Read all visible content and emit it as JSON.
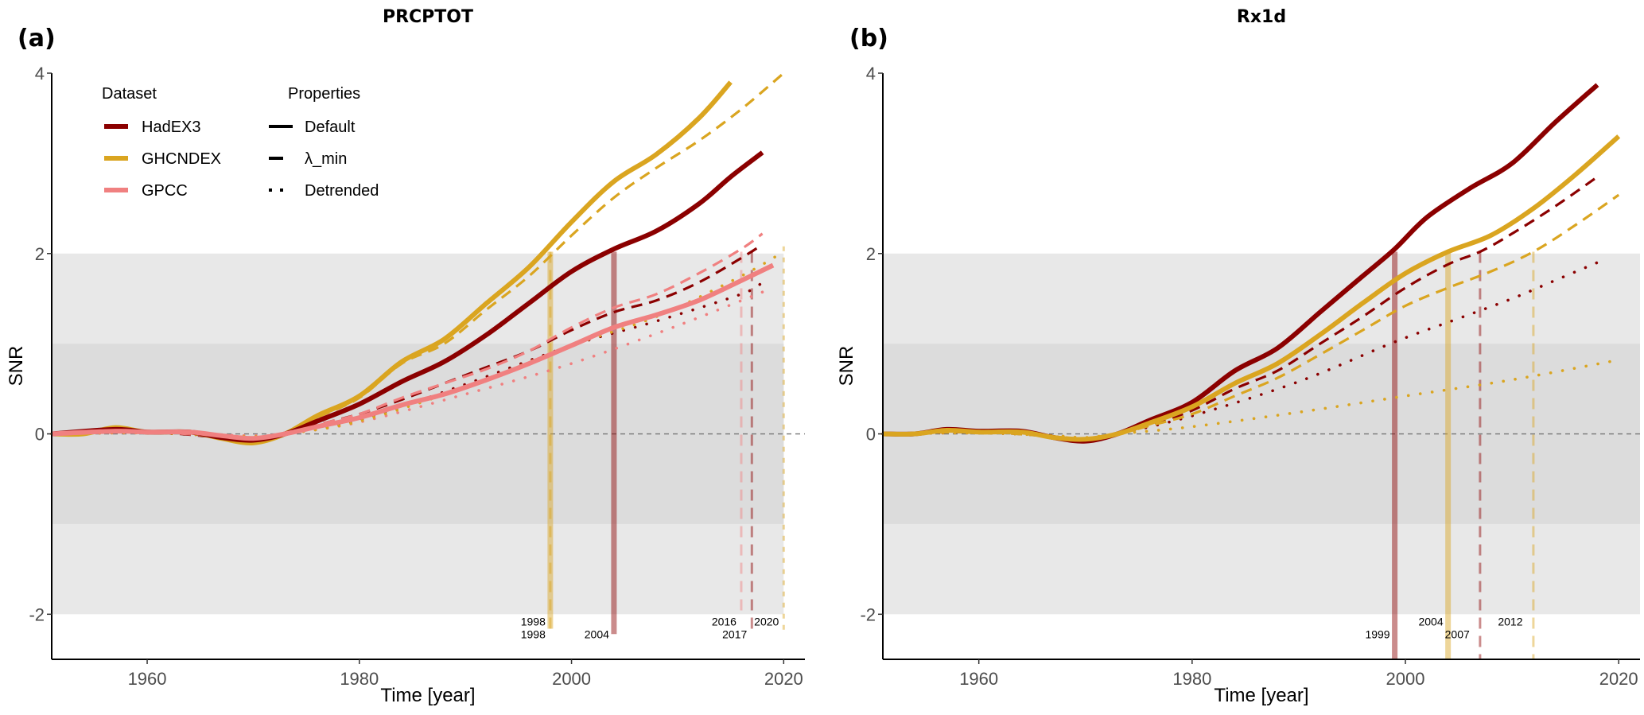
{
  "colors": {
    "HadEX3": "#8B0000",
    "GHCNDEX": "#DAA520",
    "GPCC": "#F08080",
    "band_outer": "#E8E8E8",
    "band_inner": "#DCDCDC",
    "zero_line": "#777777",
    "axis": "#000000"
  },
  "legend": {
    "dataset_title": "Dataset",
    "properties_title": "Properties",
    "datasets": [
      "HadEX3",
      "GHCNDEX",
      "GPCC"
    ],
    "properties": [
      {
        "label": "Default",
        "style": "solid"
      },
      {
        "label": "λ_min",
        "style": "dashed"
      },
      {
        "label": "Detrended",
        "style": "dotted"
      }
    ]
  },
  "chart_data": [
    {
      "type": "line",
      "panel_label": "(a)",
      "title": "PRCPTOT",
      "xlabel": "Time [year]",
      "ylabel": "SNR",
      "xlim": [
        1951,
        2022
      ],
      "ylim": [
        -2.5,
        4
      ],
      "xticks": [
        1960,
        1980,
        2000,
        2020
      ],
      "yticks": [
        -2,
        0,
        2,
        4
      ],
      "bands": [
        {
          "from": -2,
          "to": 2,
          "shade": "outer"
        },
        {
          "from": -1,
          "to": 1,
          "shade": "inner"
        }
      ],
      "bands_end_year": 2020,
      "reference_line": 0,
      "legend_position": "top-left",
      "series": [
        {
          "dataset": "GHCNDEX",
          "property": "Default",
          "x": [
            1951,
            1954,
            1957,
            1960,
            1964,
            1967,
            1970,
            1973,
            1976,
            1980,
            1984,
            1988,
            1992,
            1996,
            2000,
            2004,
            2008,
            2012,
            2015
          ],
          "y": [
            0,
            0,
            0.07,
            0.02,
            0.02,
            -0.05,
            -0.1,
            0.0,
            0.2,
            0.42,
            0.8,
            1.05,
            1.45,
            1.85,
            2.35,
            2.8,
            3.1,
            3.5,
            3.9
          ]
        },
        {
          "dataset": "GHCNDEX",
          "property": "λ_min",
          "x": [
            1951,
            1954,
            1957,
            1960,
            1964,
            1967,
            1970,
            1973,
            1976,
            1980,
            1984,
            1988,
            1992,
            1996,
            2000,
            2004,
            2008,
            2012,
            2016,
            2020
          ],
          "y": [
            0,
            0,
            0.06,
            0.02,
            0.02,
            -0.05,
            -0.09,
            0.0,
            0.18,
            0.4,
            0.78,
            1.0,
            1.38,
            1.75,
            2.2,
            2.62,
            2.95,
            3.25,
            3.6,
            4.0
          ]
        },
        {
          "dataset": "HadEX3",
          "property": "Default",
          "x": [
            1951,
            1957,
            1960,
            1964,
            1967,
            1970,
            1973,
            1976,
            1980,
            1984,
            1988,
            1992,
            1996,
            2000,
            2004,
            2008,
            2012,
            2015,
            2018
          ],
          "y": [
            0,
            0.05,
            0.02,
            0.02,
            -0.04,
            -0.07,
            0.0,
            0.14,
            0.33,
            0.58,
            0.8,
            1.1,
            1.45,
            1.8,
            2.05,
            2.25,
            2.55,
            2.85,
            3.12
          ]
        },
        {
          "dataset": "HadEX3",
          "property": "λ_min",
          "x": [
            1951,
            1960,
            1967,
            1970,
            1973,
            1976,
            1980,
            1984,
            1988,
            1992,
            1996,
            2000,
            2004,
            2008,
            2012,
            2016,
            2018
          ],
          "y": [
            0,
            0.02,
            -0.04,
            -0.06,
            0.0,
            0.1,
            0.22,
            0.38,
            0.56,
            0.74,
            0.92,
            1.15,
            1.35,
            1.48,
            1.68,
            1.95,
            2.1
          ]
        },
        {
          "dataset": "HadEX3",
          "property": "Detrended",
          "x": [
            1951,
            1960,
            1970,
            1973,
            1980,
            1990,
            2000,
            2008,
            2016,
            2018
          ],
          "y": [
            0,
            0.01,
            -0.03,
            0.0,
            0.15,
            0.55,
            0.98,
            1.25,
            1.55,
            1.68
          ]
        },
        {
          "dataset": "GPCC",
          "property": "Default",
          "x": [
            1951,
            1957,
            1960,
            1964,
            1967,
            1970,
            1973,
            1976,
            1980,
            1984,
            1988,
            1992,
            1996,
            2000,
            2004,
            2008,
            2012,
            2016,
            2019
          ],
          "y": [
            0,
            0.03,
            0.02,
            0.02,
            -0.02,
            -0.05,
            0.0,
            0.08,
            0.18,
            0.32,
            0.44,
            0.6,
            0.78,
            0.98,
            1.18,
            1.32,
            1.48,
            1.7,
            1.87
          ]
        },
        {
          "dataset": "GPCC",
          "property": "λ_min",
          "x": [
            1951,
            1960,
            1967,
            1970,
            1973,
            1976,
            1980,
            1984,
            1988,
            1992,
            1996,
            2000,
            2004,
            2008,
            2012,
            2016,
            2018
          ],
          "y": [
            0,
            0.02,
            -0.03,
            -0.05,
            0.0,
            0.1,
            0.22,
            0.4,
            0.56,
            0.72,
            0.92,
            1.18,
            1.4,
            1.55,
            1.78,
            2.05,
            2.22
          ]
        },
        {
          "dataset": "GPCC",
          "property": "Detrended",
          "x": [
            1951,
            1960,
            1970,
            1973,
            1980,
            1990,
            2000,
            2010,
            2019
          ],
          "y": [
            0,
            0.01,
            -0.02,
            0.0,
            0.13,
            0.44,
            0.78,
            1.2,
            1.62
          ]
        },
        {
          "dataset": "GHCNDEX",
          "property": "Detrended",
          "x": [
            1951,
            1960,
            1970,
            1973,
            1980,
            1990,
            2000,
            2008,
            2016,
            2020
          ],
          "y": [
            0,
            0.01,
            -0.03,
            0.0,
            0.14,
            0.52,
            0.98,
            1.3,
            1.75,
            2.02
          ]
        }
      ],
      "emergence_markers": [
        {
          "dataset": "GHCNDEX",
          "property": "Default",
          "year": 1998,
          "label": "1998",
          "row": 1
        },
        {
          "dataset": "GHCNDEX",
          "property": "λ_min",
          "year": 1998,
          "label": "1998",
          "row": 2
        },
        {
          "dataset": "HadEX3",
          "property": "Default",
          "year": 2004,
          "label": "2004",
          "row": 2
        },
        {
          "dataset": "GPCC",
          "property": "λ_min",
          "year": 2016,
          "label": "2016",
          "row": 1
        },
        {
          "dataset": "HadEX3",
          "property": "λ_min",
          "year": 2017,
          "label": "2017",
          "row": 2
        },
        {
          "dataset": "GHCNDEX",
          "property": "Detrended",
          "year": 2020,
          "label": "2020",
          "row": 1
        }
      ]
    },
    {
      "type": "line",
      "panel_label": "(b)",
      "title": "Rx1d",
      "xlabel": "Time [year]",
      "ylabel": "SNR",
      "xlim": [
        1951,
        2022
      ],
      "ylim": [
        -2.5,
        4
      ],
      "xticks": [
        1960,
        1980,
        2000,
        2020
      ],
      "yticks": [
        -2,
        0,
        2,
        4
      ],
      "bands": [
        {
          "from": -2,
          "to": 2,
          "shade": "outer"
        },
        {
          "from": -1,
          "to": 1,
          "shade": "inner"
        }
      ],
      "bands_end_year": 2022,
      "reference_line": 0,
      "series": [
        {
          "dataset": "HadEX3",
          "property": "Default",
          "x": [
            1951,
            1954,
            1957,
            1960,
            1964,
            1967,
            1970,
            1973,
            1976,
            1980,
            1984,
            1988,
            1992,
            1996,
            1999,
            2002,
            2006,
            2010,
            2014,
            2018
          ],
          "y": [
            0,
            0,
            0.05,
            0.03,
            0.03,
            -0.04,
            -0.08,
            0.0,
            0.15,
            0.35,
            0.7,
            0.95,
            1.35,
            1.75,
            2.05,
            2.4,
            2.72,
            3.0,
            3.45,
            3.87
          ]
        },
        {
          "dataset": "GHCNDEX",
          "property": "Default",
          "x": [
            1951,
            1954,
            1957,
            1960,
            1964,
            1967,
            1970,
            1973,
            1976,
            1980,
            1984,
            1988,
            1992,
            1996,
            2000,
            2004,
            2008,
            2012,
            2016,
            2020
          ],
          "y": [
            0,
            0,
            0.04,
            0.02,
            0.02,
            -0.04,
            -0.06,
            0.0,
            0.12,
            0.3,
            0.56,
            0.78,
            1.1,
            1.45,
            1.78,
            2.02,
            2.2,
            2.5,
            2.88,
            3.3
          ]
        },
        {
          "dataset": "HadEX3",
          "property": "λ_min",
          "x": [
            1951,
            1960,
            1967,
            1970,
            1973,
            1976,
            1980,
            1984,
            1988,
            1992,
            1996,
            2000,
            2004,
            2007,
            2010,
            2014,
            2018
          ],
          "y": [
            0,
            0.02,
            -0.03,
            -0.06,
            0.0,
            0.1,
            0.26,
            0.5,
            0.7,
            1.0,
            1.3,
            1.62,
            1.88,
            2.02,
            2.22,
            2.52,
            2.85
          ]
        },
        {
          "dataset": "GHCNDEX",
          "property": "λ_min",
          "x": [
            1951,
            1960,
            1967,
            1970,
            1973,
            1976,
            1980,
            1984,
            1988,
            1992,
            1996,
            2000,
            2004,
            2008,
            2012,
            2016,
            2020
          ],
          "y": [
            0,
            0.02,
            -0.03,
            -0.05,
            0.0,
            0.09,
            0.22,
            0.42,
            0.62,
            0.88,
            1.15,
            1.42,
            1.62,
            1.8,
            2.02,
            2.32,
            2.65
          ]
        },
        {
          "dataset": "HadEX3",
          "property": "Detrended",
          "x": [
            1951,
            1960,
            1967,
            1970,
            1973,
            1980,
            1990,
            1999,
            2005,
            2010,
            2014,
            2018
          ],
          "y": [
            0,
            0.01,
            -0.02,
            -0.05,
            0.0,
            0.2,
            0.58,
            1.02,
            1.28,
            1.5,
            1.7,
            1.9
          ]
        },
        {
          "dataset": "GHCNDEX",
          "property": "Detrended",
          "x": [
            1951,
            1960,
            1967,
            1970,
            1973,
            1980,
            1990,
            2000,
            2010,
            2020
          ],
          "y": [
            0,
            0.01,
            -0.02,
            -0.04,
            0.0,
            0.08,
            0.24,
            0.42,
            0.6,
            0.82
          ]
        }
      ],
      "emergence_markers": [
        {
          "dataset": "HadEX3",
          "property": "Default",
          "year": 1999,
          "label": "1999",
          "row": 2
        },
        {
          "dataset": "GHCNDEX",
          "property": "Default",
          "year": 2004,
          "label": "2004",
          "row": 1
        },
        {
          "dataset": "HadEX3",
          "property": "λ_min",
          "year": 2007,
          "label": "2007",
          "row": 2
        },
        {
          "dataset": "GHCNDEX",
          "property": "λ_min",
          "year": 2012,
          "label": "2012",
          "row": 1
        }
      ]
    }
  ]
}
